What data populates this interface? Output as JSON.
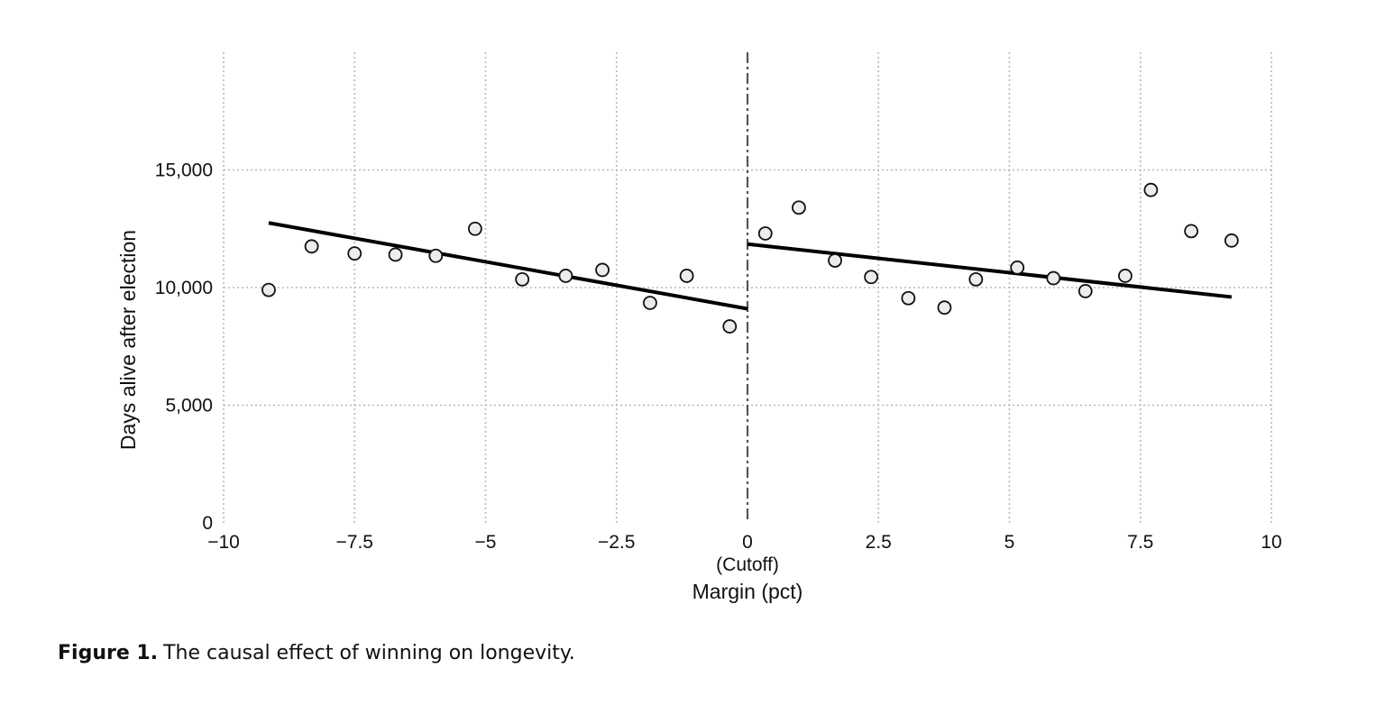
{
  "chart_data": {
    "type": "scatter",
    "xlabel": "Margin (pct)",
    "ylabel": "Days alive after election",
    "xlim": [
      -10,
      10
    ],
    "ylim": [
      0,
      20000
    ],
    "grid": true,
    "x_ticks": [
      {
        "value": -10,
        "label": "−10"
      },
      {
        "value": -7.5,
        "label": "−7.5"
      },
      {
        "value": -5,
        "label": "−5"
      },
      {
        "value": -2.5,
        "label": "−2.5"
      },
      {
        "value": 0,
        "label": "0"
      },
      {
        "value": 2.5,
        "label": "2.5"
      },
      {
        "value": 5,
        "label": "5"
      },
      {
        "value": 7.5,
        "label": "7.5"
      },
      {
        "value": 10,
        "label": "10"
      }
    ],
    "y_ticks": [
      {
        "value": 0,
        "label": "0"
      },
      {
        "value": 5000,
        "label": "5,000"
      },
      {
        "value": 10000,
        "label": "10,000"
      },
      {
        "value": 15000,
        "label": "15,000"
      }
    ],
    "cutoff": {
      "x": 0,
      "label": "(Cutoff)"
    },
    "series": [
      {
        "side": "losers",
        "points": [
          {
            "x": -9.14,
            "y": 9900
          },
          {
            "x": -8.32,
            "y": 11750
          },
          {
            "x": -7.5,
            "y": 11450
          },
          {
            "x": -6.72,
            "y": 11400
          },
          {
            "x": -5.95,
            "y": 11350
          },
          {
            "x": -5.2,
            "y": 12500
          },
          {
            "x": -4.3,
            "y": 10350
          },
          {
            "x": -3.47,
            "y": 10500
          },
          {
            "x": -2.77,
            "y": 10750
          },
          {
            "x": -1.86,
            "y": 9350
          },
          {
            "x": -1.16,
            "y": 10500
          },
          {
            "x": -0.34,
            "y": 8350
          }
        ],
        "fit": {
          "x": [
            -9.14,
            0
          ],
          "y": [
            12750,
            9100
          ]
        }
      },
      {
        "side": "winners",
        "points": [
          {
            "x": 0.34,
            "y": 12300
          },
          {
            "x": 0.98,
            "y": 13400
          },
          {
            "x": 1.67,
            "y": 11150
          },
          {
            "x": 2.36,
            "y": 10450
          },
          {
            "x": 3.07,
            "y": 9550
          },
          {
            "x": 3.76,
            "y": 9150
          },
          {
            "x": 4.36,
            "y": 10350
          },
          {
            "x": 5.15,
            "y": 10850
          },
          {
            "x": 5.84,
            "y": 10400
          },
          {
            "x": 6.45,
            "y": 9850
          },
          {
            "x": 7.21,
            "y": 10500
          },
          {
            "x": 7.7,
            "y": 14150
          },
          {
            "x": 8.47,
            "y": 12400
          },
          {
            "x": 9.24,
            "y": 12000
          }
        ],
        "fit": {
          "x": [
            0,
            9.24
          ],
          "y": [
            11850,
            9600
          ]
        }
      }
    ]
  },
  "caption": {
    "label": "Figure 1.",
    "text": "The causal effect of winning on longevity."
  }
}
